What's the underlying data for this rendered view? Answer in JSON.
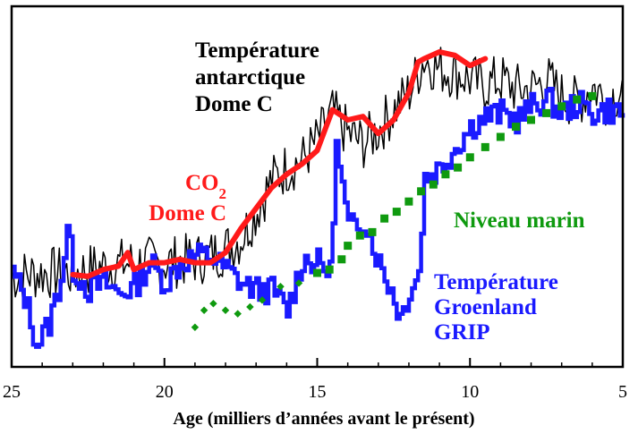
{
  "chart_data": {
    "type": "line",
    "title": "",
    "xlabel": "Age (milliers d’années avant le présent)",
    "ylabel": "",
    "xlim": [
      25,
      5
    ],
    "x_reversed": true,
    "x_ticks": [
      25,
      20,
      15,
      10,
      5
    ],
    "x_tick_labels": [
      "25",
      "20",
      "15",
      "10",
      "5"
    ],
    "y_normalized": true,
    "ylim": [
      0,
      1
    ],
    "y_ticks_shown": false,
    "grid": false,
    "legend": "none (series labelled directly on the plot)",
    "series": [
      {
        "key": "antarctic",
        "label_lines": [
          "Température",
          "antarctique",
          "Dome C"
        ],
        "color": "#000000",
        "style": "thin noisy line",
        "x": [
          25.0,
          24.0,
          23.0,
          22.0,
          21.0,
          20.0,
          19.0,
          18.5,
          18.0,
          17.5,
          17.0,
          16.5,
          16.0,
          15.5,
          15.0,
          14.5,
          14.0,
          13.5,
          13.0,
          12.5,
          12.0,
          11.5,
          11.0,
          10.5,
          10.0,
          9.5,
          9.0,
          8.5,
          8.0,
          7.5,
          7.0,
          6.5,
          6.0,
          5.5,
          5.0
        ],
        "y": [
          0.24,
          0.25,
          0.25,
          0.27,
          0.28,
          0.28,
          0.29,
          0.3,
          0.32,
          0.35,
          0.43,
          0.52,
          0.56,
          0.58,
          0.64,
          0.72,
          0.66,
          0.63,
          0.67,
          0.73,
          0.78,
          0.88,
          0.85,
          0.84,
          0.82,
          0.8,
          0.82,
          0.79,
          0.79,
          0.82,
          0.77,
          0.75,
          0.8,
          0.76,
          0.79
        ]
      },
      {
        "key": "co2",
        "label_lines": [
          "CO2",
          "Dome C"
        ],
        "label_subscript": "2",
        "color": "#ff1a1a",
        "style": "thick line",
        "x": [
          23.0,
          22.5,
          22.0,
          21.5,
          21.2,
          21.0,
          20.5,
          20.0,
          19.5,
          19.0,
          18.5,
          18.0,
          17.5,
          17.0,
          16.5,
          16.0,
          15.5,
          15.0,
          14.5,
          14.0,
          13.5,
          13.0,
          12.5,
          12.0,
          11.7,
          11.5,
          11.0,
          10.5,
          10.0,
          9.5
        ],
        "y": [
          0.245,
          0.24,
          0.26,
          0.27,
          0.31,
          0.26,
          0.28,
          0.28,
          0.29,
          0.28,
          0.28,
          0.31,
          0.38,
          0.44,
          0.5,
          0.54,
          0.57,
          0.61,
          0.73,
          0.7,
          0.71,
          0.66,
          0.7,
          0.78,
          0.87,
          0.88,
          0.9,
          0.89,
          0.86,
          0.88
        ]
      },
      {
        "key": "greenland",
        "label_lines": [
          "Température",
          "Groenland",
          "GRIP"
        ],
        "color": "#1a1aff",
        "style": "stepped line",
        "x": [
          25.0,
          24.6,
          24.2,
          23.8,
          23.4,
          23.2,
          23.0,
          22.5,
          22.0,
          21.5,
          21.0,
          20.5,
          20.0,
          19.5,
          19.0,
          18.5,
          18.0,
          17.5,
          17.0,
          16.5,
          16.0,
          15.5,
          15.0,
          14.6,
          14.4,
          14.0,
          13.5,
          13.0,
          12.6,
          12.3,
          12.0,
          11.7,
          11.5,
          11.0,
          10.5,
          10.0,
          9.5,
          9.0,
          8.5,
          8.0,
          7.5,
          7.0,
          6.5,
          6.0,
          5.5,
          5.0
        ],
        "y": [
          0.25,
          0.18,
          0.04,
          0.1,
          0.24,
          0.38,
          0.26,
          0.2,
          0.22,
          0.19,
          0.21,
          0.28,
          0.22,
          0.28,
          0.3,
          0.3,
          0.26,
          0.22,
          0.2,
          0.2,
          0.14,
          0.29,
          0.28,
          0.25,
          0.62,
          0.38,
          0.41,
          0.28,
          0.2,
          0.12,
          0.2,
          0.25,
          0.53,
          0.56,
          0.62,
          0.68,
          0.71,
          0.72,
          0.7,
          0.74,
          0.76,
          0.72,
          0.75,
          0.72,
          0.73,
          0.72
        ]
      },
      {
        "key": "sealevel",
        "label_lines": [
          "Niveau marin"
        ],
        "color": "#0f9a0f",
        "style": "dashed line of square markers",
        "x": [
          19.0,
          18.7,
          18.4,
          18.0,
          17.6,
          17.2,
          16.8,
          16.2,
          15.6,
          15.0,
          14.6,
          14.2,
          14.0,
          13.6,
          13.2,
          12.8,
          12.4,
          12.0,
          11.6,
          11.2,
          10.8,
          10.4,
          10.0,
          9.5,
          9.0,
          8.5,
          8.0,
          7.5,
          7.0,
          6.5,
          6.0
        ],
        "y": [
          0.09,
          0.14,
          0.16,
          0.14,
          0.13,
          0.15,
          0.17,
          0.21,
          0.22,
          0.25,
          0.26,
          0.29,
          0.33,
          0.36,
          0.37,
          0.41,
          0.43,
          0.46,
          0.49,
          0.51,
          0.54,
          0.56,
          0.59,
          0.62,
          0.65,
          0.68,
          0.7,
          0.72,
          0.74,
          0.76,
          0.77
        ]
      }
    ]
  }
}
